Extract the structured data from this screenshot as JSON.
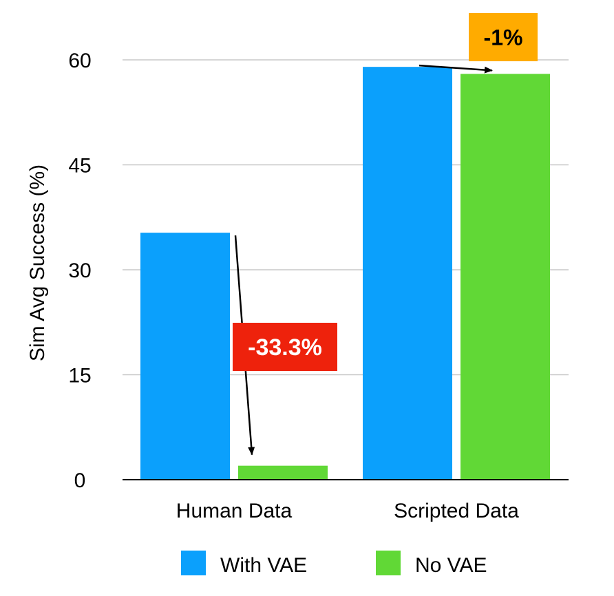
{
  "chart_data": {
    "type": "bar",
    "title": "",
    "xlabel": "",
    "ylabel": "Sim Avg Success (%)",
    "ylim": [
      0,
      60
    ],
    "yticks": [
      0,
      15,
      30,
      45,
      60
    ],
    "ytick_labels": [
      "0",
      "15",
      "30",
      "45",
      "60"
    ],
    "grid": true,
    "categories": [
      "Human Data",
      "Scripted Data"
    ],
    "series": [
      {
        "name": "With VAE",
        "color": "#0ba0fc",
        "values": [
          35.3,
          59.0
        ]
      },
      {
        "name": "No VAE",
        "color": "#61d836",
        "values": [
          2.0,
          58.0
        ]
      }
    ],
    "annotations": [
      {
        "text": "-33.3%",
        "category": 0,
        "from_series": 0,
        "to_series": 1,
        "color": "#ee220c",
        "text_color": "#ffffff"
      },
      {
        "text": "-1%",
        "category": 1,
        "from_series": 0,
        "to_series": 1,
        "color": "#ffab00",
        "text_color": "#000000"
      }
    ],
    "legend_position": "bottom"
  }
}
